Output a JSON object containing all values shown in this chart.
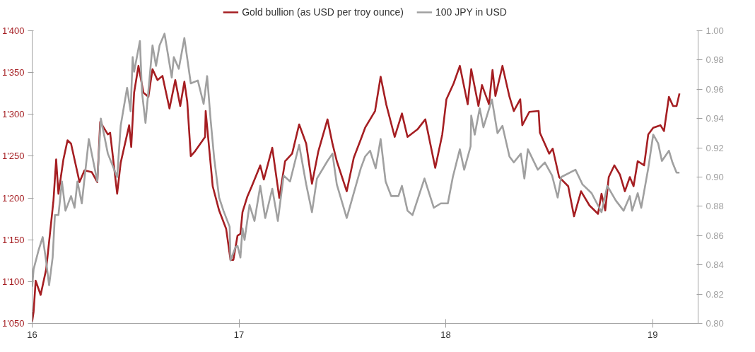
{
  "chart_data": {
    "type": "line",
    "xlim": [
      16,
      19.22
    ],
    "xticks": [
      16,
      17,
      18,
      19
    ],
    "ylim": [
      1050,
      1400
    ],
    "yticks": [
      {
        "value": 1050,
        "label": "1'050"
      },
      {
        "value": 1100,
        "label": "1'100"
      },
      {
        "value": 1150,
        "label": "1'150"
      },
      {
        "value": 1200,
        "label": "1'200"
      },
      {
        "value": 1250,
        "label": "1'250"
      },
      {
        "value": 1300,
        "label": "1'300"
      },
      {
        "value": 1350,
        "label": "1'350"
      },
      {
        "value": 1400,
        "label": "1'400"
      }
    ],
    "y2lim": [
      0.8,
      1.0
    ],
    "y2ticks": [
      {
        "value": 0.8,
        "label": "0.80"
      },
      {
        "value": 0.82,
        "label": "0.82"
      },
      {
        "value": 0.84,
        "label": "0.84"
      },
      {
        "value": 0.86,
        "label": "0.86"
      },
      {
        "value": 0.88,
        "label": "0.88"
      },
      {
        "value": 0.9,
        "label": "0.90"
      },
      {
        "value": 0.92,
        "label": "0.92"
      },
      {
        "value": 0.94,
        "label": "0.94"
      },
      {
        "value": 0.96,
        "label": "0.96"
      },
      {
        "value": 0.98,
        "label": "0.98"
      },
      {
        "value": 1.0,
        "label": "1.00"
      }
    ],
    "legend": "top",
    "grid": false,
    "marker": "none",
    "line_style": "solid",
    "series": [
      {
        "name": "Gold bullion (as USD per troy ounce)",
        "color": "#a51e22",
        "x": [
          16.0,
          16.007,
          16.017,
          16.041,
          16.068,
          16.103,
          16.116,
          16.127,
          16.151,
          16.171,
          16.188,
          16.229,
          16.253,
          16.288,
          16.315,
          16.329,
          16.366,
          16.377,
          16.411,
          16.428,
          16.469,
          16.479,
          16.493,
          16.514,
          16.538,
          16.562,
          16.582,
          16.606,
          16.63,
          16.664,
          16.692,
          16.716,
          16.736,
          16.75,
          16.767,
          16.788,
          16.836,
          16.839,
          16.873,
          16.904,
          16.938,
          16.959,
          16.973,
          16.993,
          17.007,
          17.017,
          17.041,
          17.062,
          17.103,
          17.12,
          17.161,
          17.195,
          17.223,
          17.257,
          17.291,
          17.325,
          17.353,
          17.384,
          17.428,
          17.452,
          17.473,
          17.521,
          17.555,
          17.589,
          17.61,
          17.658,
          17.685,
          17.712,
          17.753,
          17.788,
          17.815,
          17.863,
          17.901,
          17.949,
          17.983,
          18.003,
          18.038,
          18.068,
          18.106,
          18.123,
          18.158,
          18.175,
          18.209,
          18.226,
          18.24,
          18.274,
          18.308,
          18.329,
          18.36,
          18.37,
          18.404,
          18.449,
          18.455,
          18.5,
          18.517,
          18.548,
          18.592,
          18.62,
          18.654,
          18.695,
          18.736,
          18.753,
          18.771,
          18.788,
          18.815,
          18.842,
          18.866,
          18.89,
          18.908,
          18.928,
          18.959,
          18.979,
          19.003,
          19.038,
          19.055,
          19.079,
          19.099,
          19.116,
          19.13
        ],
        "values": [
          1052,
          1064,
          1101,
          1084,
          1115,
          1197,
          1246,
          1205,
          1246,
          1269,
          1265,
          1219,
          1233,
          1231,
          1219,
          1291,
          1276,
          1278,
          1205,
          1242,
          1287,
          1261,
          1326,
          1358,
          1326,
          1321,
          1354,
          1341,
          1346,
          1307,
          1341,
          1310,
          1339,
          1315,
          1250,
          1256,
          1273,
          1304,
          1214,
          1185,
          1163,
          1126,
          1126,
          1155,
          1157,
          1183,
          1202,
          1214,
          1239,
          1222,
          1260,
          1200,
          1244,
          1253,
          1288,
          1265,
          1217,
          1256,
          1294,
          1265,
          1244,
          1208,
          1248,
          1270,
          1284,
          1304,
          1345,
          1312,
          1273,
          1301,
          1273,
          1282,
          1294,
          1236,
          1276,
          1318,
          1337,
          1358,
          1312,
          1354,
          1310,
          1335,
          1312,
          1353,
          1322,
          1358,
          1321,
          1304,
          1318,
          1287,
          1303,
          1304,
          1278,
          1253,
          1259,
          1225,
          1214,
          1178,
          1208,
          1191,
          1181,
          1205,
          1185,
          1225,
          1239,
          1228,
          1208,
          1225,
          1214,
          1244,
          1239,
          1276,
          1284,
          1287,
          1280,
          1321,
          1310,
          1310,
          1325
        ]
      },
      {
        "name": "100 JPY in USD",
        "color": "#a0a0a0",
        "axis": "y2",
        "x": [
          16.0,
          16.007,
          16.031,
          16.051,
          16.068,
          16.082,
          16.099,
          16.11,
          16.127,
          16.144,
          16.161,
          16.188,
          16.205,
          16.219,
          16.24,
          16.274,
          16.315,
          16.332,
          16.366,
          16.411,
          16.428,
          16.459,
          16.476,
          16.486,
          16.493,
          16.521,
          16.531,
          16.548,
          16.582,
          16.599,
          16.616,
          16.64,
          16.675,
          16.685,
          16.709,
          16.736,
          16.767,
          16.801,
          16.829,
          16.846,
          16.863,
          16.88,
          16.904,
          16.925,
          16.955,
          16.959,
          16.983,
          16.993,
          17.007,
          17.017,
          17.027,
          17.051,
          17.075,
          17.103,
          17.127,
          17.161,
          17.188,
          17.216,
          17.247,
          17.291,
          17.325,
          17.353,
          17.377,
          17.428,
          17.452,
          17.473,
          17.521,
          17.565,
          17.589,
          17.61,
          17.634,
          17.661,
          17.685,
          17.709,
          17.736,
          17.771,
          17.788,
          17.815,
          17.839,
          17.897,
          17.942,
          17.976,
          18.01,
          18.034,
          18.068,
          18.089,
          18.12,
          18.123,
          18.14,
          18.164,
          18.182,
          18.223,
          18.25,
          18.274,
          18.308,
          18.329,
          18.363,
          18.38,
          18.397,
          18.445,
          18.479,
          18.514,
          18.541,
          18.558,
          18.627,
          18.661,
          18.705,
          18.753,
          18.781,
          18.822,
          18.86,
          18.89,
          18.901,
          18.928,
          18.945,
          18.979,
          19.003,
          19.027,
          19.045,
          19.079,
          19.096,
          19.116,
          19.13
        ],
        "values": [
          0.825,
          0.837,
          0.85,
          0.859,
          0.842,
          0.826,
          0.845,
          0.874,
          0.874,
          0.897,
          0.877,
          0.887,
          0.879,
          0.897,
          0.882,
          0.926,
          0.897,
          0.94,
          0.916,
          0.9,
          0.935,
          0.961,
          0.945,
          0.982,
          0.972,
          0.993,
          0.958,
          0.937,
          0.99,
          0.976,
          0.99,
          0.998,
          0.968,
          0.982,
          0.974,
          0.995,
          0.964,
          0.966,
          0.95,
          0.969,
          0.939,
          0.913,
          0.886,
          0.877,
          0.866,
          0.843,
          0.852,
          0.853,
          0.845,
          0.865,
          0.857,
          0.881,
          0.87,
          0.894,
          0.872,
          0.892,
          0.87,
          0.901,
          0.897,
          0.922,
          0.895,
          0.876,
          0.899,
          0.911,
          0.916,
          0.895,
          0.872,
          0.894,
          0.906,
          0.914,
          0.918,
          0.906,
          0.926,
          0.897,
          0.887,
          0.887,
          0.894,
          0.877,
          0.874,
          0.899,
          0.879,
          0.882,
          0.882,
          0.9,
          0.919,
          0.905,
          0.921,
          0.942,
          0.929,
          0.947,
          0.934,
          0.953,
          0.93,
          0.935,
          0.914,
          0.91,
          0.916,
          0.899,
          0.919,
          0.905,
          0.91,
          0.901,
          0.886,
          0.9,
          0.905,
          0.895,
          0.889,
          0.876,
          0.894,
          0.884,
          0.877,
          0.887,
          0.877,
          0.889,
          0.879,
          0.906,
          0.929,
          0.923,
          0.911,
          0.918,
          0.91,
          0.903,
          0.903
        ]
      }
    ]
  }
}
